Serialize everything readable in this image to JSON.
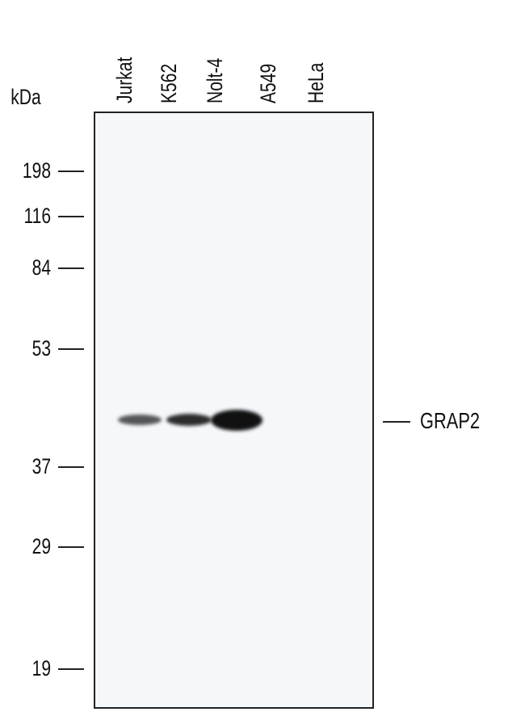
{
  "units_label": "kDa",
  "lanes": [
    {
      "label": "Jurkat",
      "band_intensity": 0.55
    },
    {
      "label": "K562",
      "band_intensity": 0.8
    },
    {
      "label": "Nolt-4",
      "band_intensity": 1.0
    },
    {
      "label": "A549",
      "band_intensity": 0
    },
    {
      "label": "HeLa",
      "band_intensity": 0
    }
  ],
  "markers": [
    "198",
    "116",
    "84",
    "53",
    "37",
    "29",
    "19"
  ],
  "target_label": "GRAP2"
}
